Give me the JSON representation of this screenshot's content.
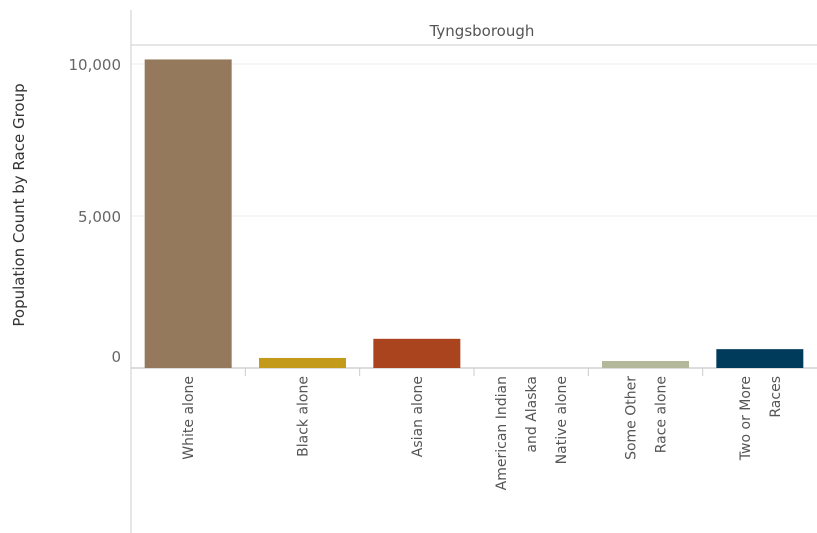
{
  "chart_data": {
    "type": "bar",
    "title": "",
    "panel_header": "Tyngsborough",
    "ylabel": "Population Count by Race Group",
    "xlabel": "",
    "ylim": [
      0,
      11000
    ],
    "yticks": [
      0,
      5000,
      10000
    ],
    "ytick_labels": [
      "0",
      "5,000",
      "10,000"
    ],
    "grid": true,
    "legend": "none",
    "categories": [
      [
        "White alone"
      ],
      [
        "Black alone"
      ],
      [
        "Asian alone"
      ],
      [
        "American Indian",
        "and Alaska",
        "Native alone"
      ],
      [
        "Some Other",
        "Race alone"
      ],
      [
        "Two or More",
        "Races"
      ]
    ],
    "values": [
      10150,
      330,
      960,
      0,
      230,
      620
    ],
    "colors": [
      "#94795d",
      "#c49a1a",
      "#a9441f",
      "#a9441f",
      "#b3b89b",
      "#003b5c"
    ]
  }
}
